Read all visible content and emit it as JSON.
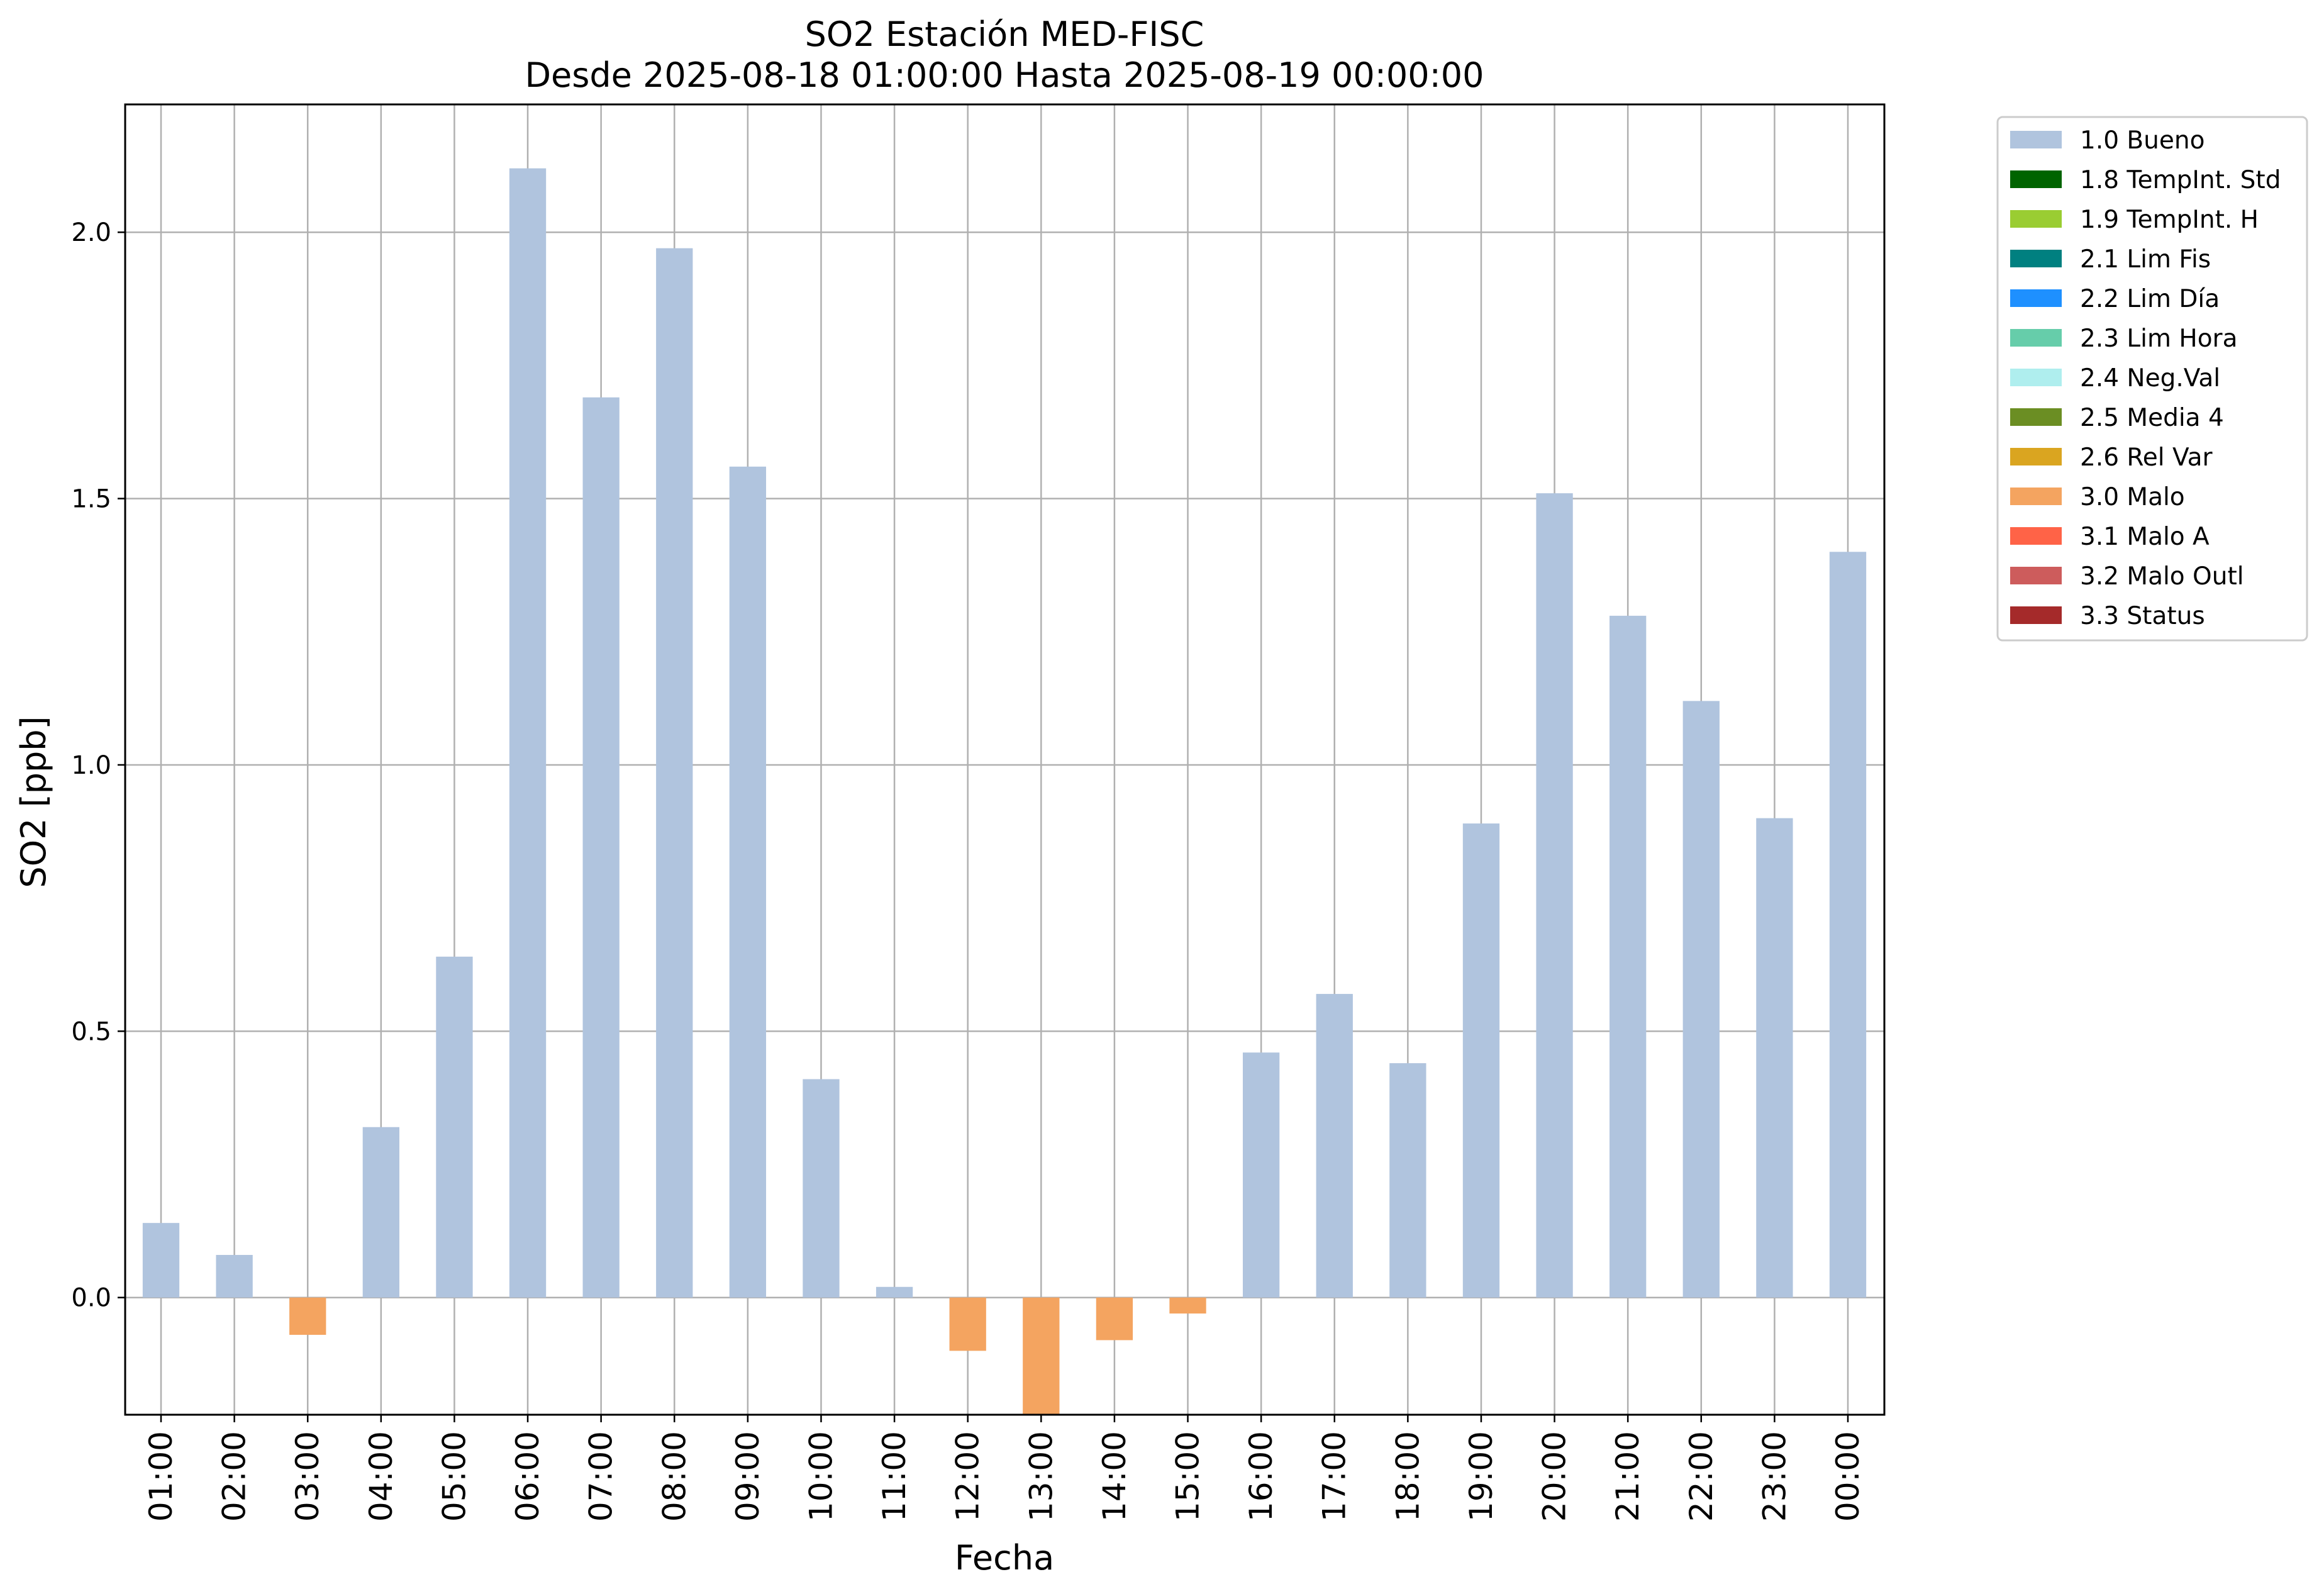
{
  "chart_data": {
    "type": "bar",
    "title": "SO2 Estación MED-FISC",
    "subtitle": "Desde 2025-08-18 01:00:00 Hasta 2025-08-19 00:00:00",
    "xlabel": "Fecha",
    "ylabel": "SO2 [ppb]",
    "ylim": [
      -0.22,
      2.24
    ],
    "yticks": [
      "0.0",
      "0.5",
      "1.0",
      "1.5",
      "2.0"
    ],
    "grid": true,
    "legend_position": "outside-right",
    "categories": [
      "01:00",
      "02:00",
      "03:00",
      "04:00",
      "05:00",
      "06:00",
      "07:00",
      "08:00",
      "09:00",
      "10:00",
      "11:00",
      "12:00",
      "13:00",
      "14:00",
      "15:00",
      "16:00",
      "17:00",
      "18:00",
      "19:00",
      "20:00",
      "21:00",
      "22:00",
      "23:00",
      "00:00"
    ],
    "values": [
      0.14,
      0.08,
      -0.07,
      0.32,
      0.64,
      2.12,
      1.69,
      1.97,
      1.56,
      0.41,
      0.02,
      -0.1,
      -0.22,
      -0.08,
      -0.03,
      0.46,
      0.57,
      0.44,
      0.89,
      1.51,
      1.28,
      1.12,
      0.9,
      1.4
    ],
    "flags": [
      "1.0 Bueno",
      "1.0 Bueno",
      "3.0 Malo",
      "1.0 Bueno",
      "1.0 Bueno",
      "1.0 Bueno",
      "1.0 Bueno",
      "1.0 Bueno",
      "1.0 Bueno",
      "1.0 Bueno",
      "1.0 Bueno",
      "3.0 Malo",
      "3.0 Malo",
      "3.0 Malo",
      "3.0 Malo",
      "1.0 Bueno",
      "1.0 Bueno",
      "1.0 Bueno",
      "1.0 Bueno",
      "1.0 Bueno",
      "1.0 Bueno",
      "1.0 Bueno",
      "1.0 Bueno",
      "1.0 Bueno"
    ],
    "legend": [
      {
        "label": "1.0 Bueno",
        "color": "#b0c4de"
      },
      {
        "label": "1.8 TempInt. Std",
        "color": "#006400"
      },
      {
        "label": "1.9 TempInt. H",
        "color": "#9acd32"
      },
      {
        "label": "2.1 Lim Fis",
        "color": "#008080"
      },
      {
        "label": "2.2 Lim Día",
        "color": "#1e90ff"
      },
      {
        "label": "2.3 Lim Hora",
        "color": "#66cdaa"
      },
      {
        "label": "2.4 Neg.Val",
        "color": "#afeeee"
      },
      {
        "label": "2.5 Media 4",
        "color": "#6b8e23"
      },
      {
        "label": "2.6 Rel Var",
        "color": "#daa520"
      },
      {
        "label": "3.0 Malo",
        "color": "#f4a460"
      },
      {
        "label": "3.1 Malo A",
        "color": "#ff6347"
      },
      {
        "label": "3.2 Malo Outl",
        "color": "#cd5c5c"
      },
      {
        "label": "3.3 Status",
        "color": "#a52a2a"
      }
    ]
  }
}
